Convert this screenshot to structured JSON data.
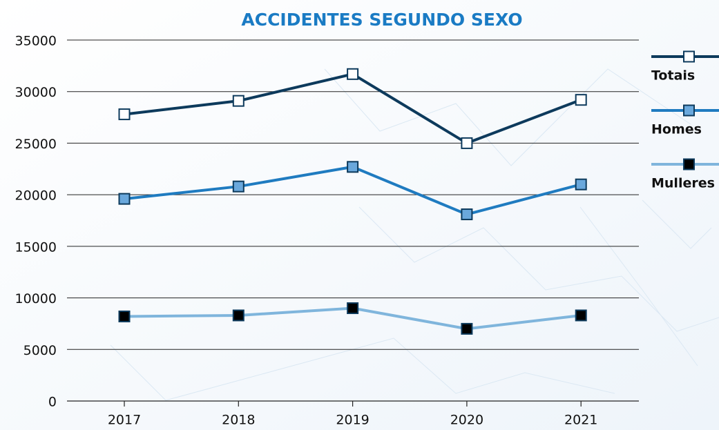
{
  "chart_data": {
    "type": "line",
    "title": "ACCIDENTES SEGUNDO SEXO",
    "categories": [
      "2017",
      "2018",
      "2019",
      "2020",
      "2021"
    ],
    "series": [
      {
        "name": "Totais",
        "color": "#0d3a5c",
        "marker_fill": "#ffffff",
        "values": [
          27800,
          29100,
          31700,
          25000,
          29200
        ]
      },
      {
        "name": "Homes",
        "color": "#1f7bc0",
        "marker_fill": "#6aa8dc",
        "values": [
          19600,
          20800,
          22700,
          18100,
          21000
        ]
      },
      {
        "name": "Mulleres",
        "color": "#7fb5dc",
        "marker_fill": "#000000",
        "values": [
          8200,
          8300,
          9000,
          7000,
          8300
        ]
      }
    ],
    "ylim": [
      0,
      35000
    ],
    "yticks": [
      0,
      5000,
      10000,
      15000,
      20000,
      25000,
      30000,
      35000
    ],
    "grid": true,
    "legend": "right"
  }
}
